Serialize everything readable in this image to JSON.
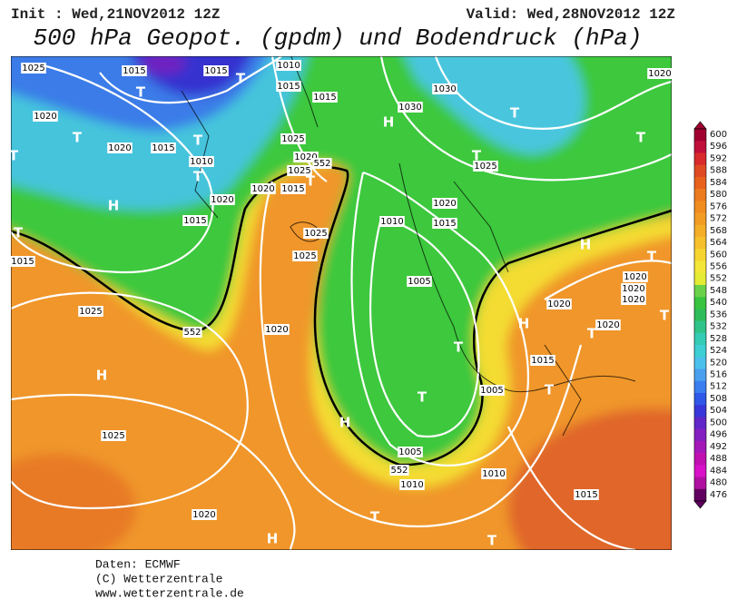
{
  "header": {
    "init": "Init : Wed,21NOV2012 12Z",
    "valid": "Valid: Wed,28NOV2012 12Z",
    "title": "500 hPa Geopot. (gpdm) und Bodendruck (hPa)"
  },
  "footer": [
    "Daten: ECMWF",
    "(C) Wetterzentrale",
    "www.wetterzentrale.de"
  ],
  "legend": {
    "labels": [
      "600",
      "596",
      "592",
      "588",
      "584",
      "580",
      "576",
      "572",
      "568",
      "564",
      "560",
      "556",
      "552",
      "548",
      "540",
      "536",
      "532",
      "528",
      "524",
      "520",
      "516",
      "512",
      "508",
      "504",
      "500",
      "496",
      "492",
      "488",
      "484",
      "480",
      "476"
    ],
    "colors": [
      "#a00030",
      "#c0103a",
      "#d82a2a",
      "#e04a22",
      "#e8621e",
      "#ec7a1e",
      "#f08c20",
      "#f29c24",
      "#f4ae28",
      "#f6c02c",
      "#f6d42e",
      "#f4e636",
      "#e4ec34",
      "#6ad24a",
      "#38c43e",
      "#2ebc5a",
      "#30c48a",
      "#34ccb4",
      "#3ccfd4",
      "#4cc0ec",
      "#4aa0ee",
      "#3a7ef0",
      "#3058e8",
      "#3838d8",
      "#6028c8",
      "#8420c0",
      "#a418b8",
      "#c010b0",
      "#d810c8",
      "#b010a0",
      "#600060"
    ]
  },
  "map_labels": [
    "1025",
    "1015",
    "1015",
    "1010",
    "1015",
    "1015",
    "1030",
    "1020",
    "1020",
    "1020",
    "1015",
    "1010",
    "1025",
    "1020",
    "1025",
    "1020",
    "1015",
    "1020",
    "1015",
    "1025",
    "1025",
    "1010",
    "1015",
    "1020",
    "1025",
    "1030",
    "1015",
    "1025",
    "1005",
    "1020",
    "1020",
    "1020",
    "1020",
    "1020",
    "1020",
    "1015",
    "1005",
    "1025",
    "1005",
    "1010",
    "1010",
    "1015",
    "1020",
    "552",
    "552",
    "552"
  ],
  "pressure_centers": [
    "T",
    "T",
    "T",
    "T",
    "T",
    "T",
    "H",
    "T",
    "H",
    "T",
    "T",
    "T",
    "H",
    "T",
    "T",
    "T",
    "H",
    "T",
    "T",
    "H",
    "T",
    "H",
    "T",
    "T",
    "H",
    "T"
  ]
}
